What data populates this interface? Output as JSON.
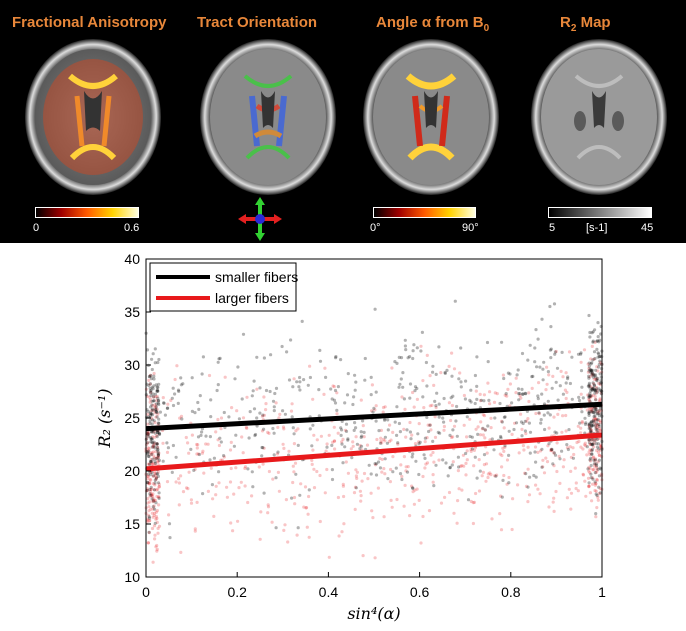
{
  "panels": [
    {
      "title_main": "Fractional Anisotropy",
      "title_sub": "",
      "title_tail": "",
      "cbar_min": "0",
      "cbar_max": "0.6",
      "cbar_unit": ""
    },
    {
      "title_main": "Tract Orientation",
      "title_sub": "",
      "title_tail": "",
      "cbar_min": "",
      "cbar_max": "",
      "cbar_unit": ""
    },
    {
      "title_main": "Angle α from B",
      "title_sub": "0",
      "title_tail": "",
      "cbar_min": "0°",
      "cbar_max": "90°",
      "cbar_unit": ""
    },
    {
      "title_main": "R",
      "title_sub": "2",
      "title_tail": " Map",
      "cbar_min": "5",
      "cbar_max": "45",
      "cbar_unit": "[s-1]"
    }
  ],
  "colors": {
    "panel_title": "#e8873a",
    "smaller": "#000000",
    "larger": "#e8191b",
    "background_top": "#000000"
  },
  "chart_data": {
    "type": "scatter",
    "xlabel": "sin⁴(α)",
    "ylabel": "R₂ (s⁻¹)",
    "xlim": [
      0,
      1
    ],
    "ylim": [
      10,
      40
    ],
    "xticks": [
      "0",
      "0.2",
      "0.4",
      "0.6",
      "0.8",
      "1"
    ],
    "yticks": [
      "10",
      "15",
      "20",
      "25",
      "30",
      "35",
      "40"
    ],
    "grid": false,
    "legend_position": "top-left",
    "series": [
      {
        "name": "smaller fibers",
        "color": "#000000",
        "fit_line": {
          "x": [
            0,
            1
          ],
          "y": [
            24.0,
            26.3
          ]
        },
        "cloud_center": 25.2,
        "cloud_spread": 4.5
      },
      {
        "name": "larger fibers",
        "color": "#e8191b",
        "fit_line": {
          "x": [
            0,
            1
          ],
          "y": [
            20.2,
            23.4
          ]
        },
        "cloud_center": 21.5,
        "cloud_spread": 4.5
      }
    ]
  }
}
